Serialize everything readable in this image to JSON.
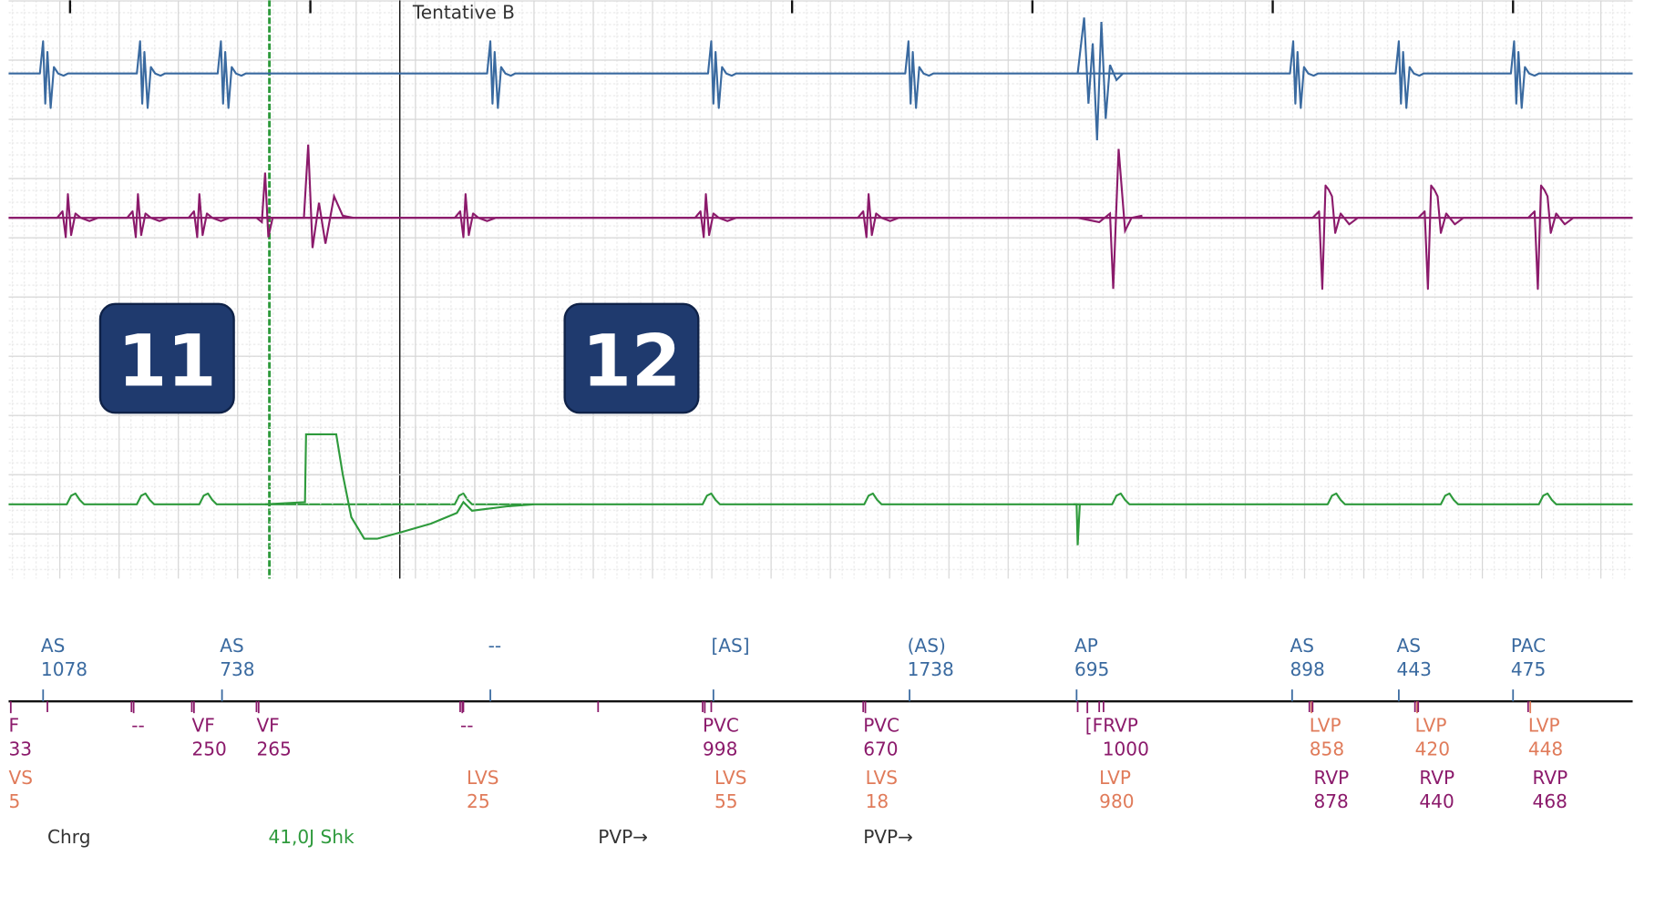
{
  "header": {
    "title": "Tentative B"
  },
  "badges": [
    "11",
    "12"
  ],
  "atrial_markers": [
    {
      "label": "AS",
      "value": "1078"
    },
    {
      "label": "AS",
      "value": "738"
    },
    {
      "label": "--"
    },
    {
      "label": "[AS]"
    },
    {
      "label": "(AS)",
      "value": "1738"
    },
    {
      "label": "AP",
      "value": "695"
    },
    {
      "label": "AS",
      "value": "898"
    },
    {
      "label": "AS",
      "value": "443"
    },
    {
      "label": "PAC",
      "value": "475"
    }
  ],
  "ventricular_markers": [
    {
      "label": "F",
      "value": "33"
    },
    {
      "label": "--"
    },
    {
      "label": "VF",
      "value": "250"
    },
    {
      "label": "VF",
      "value": "265"
    },
    {
      "label": "--"
    },
    {
      "label": "PVC",
      "value": "998"
    },
    {
      "label": "PVC",
      "value": "670"
    },
    {
      "label": "[FRVP",
      "value": "1000"
    },
    {
      "label": "LVP",
      "value": "858"
    },
    {
      "label": "LVP",
      "value": "420"
    },
    {
      "label": "LVP",
      "value": "448"
    }
  ],
  "lower_markers": [
    {
      "label": "VS",
      "value": "5"
    },
    {
      "label": "LVS",
      "value": "25"
    },
    {
      "label": "LVS",
      "value": "55"
    },
    {
      "label": "LVS",
      "value": "18"
    },
    {
      "label": "LVP",
      "value": "980"
    },
    {
      "label": "RVP",
      "value": "878"
    },
    {
      "label": "RVP",
      "value": "440"
    },
    {
      "label": "RVP",
      "value": "468"
    }
  ],
  "events": [
    "Chrg",
    "41,0J Shk",
    "PVP→",
    "PVP→"
  ]
}
